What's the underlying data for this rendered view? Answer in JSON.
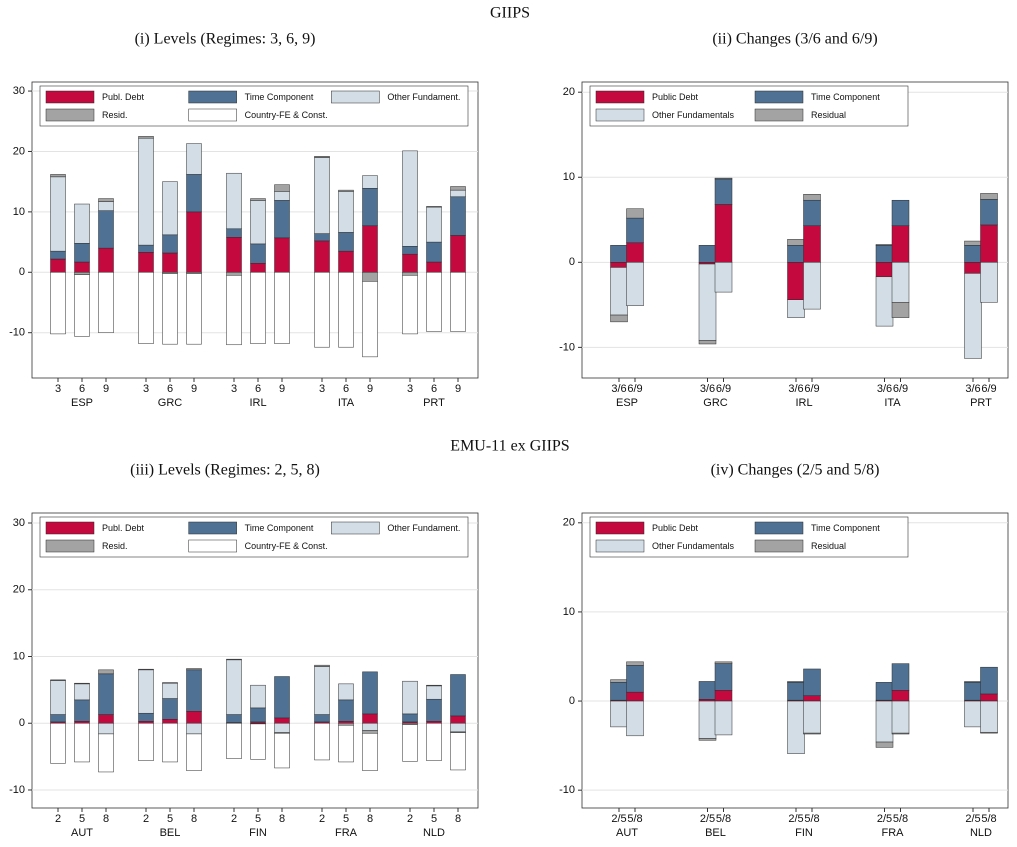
{
  "sections": [
    "GIIPS",
    "EMU-11 ex GIIPS"
  ],
  "chart_data": [
    {
      "type": "stacked_bar",
      "title": "(i) Levels (Regimes: 3, 6, 9)",
      "groups": [
        "ESP",
        "GRC",
        "IRL",
        "ITA",
        "PRT"
      ],
      "categories": [
        "3",
        "6",
        "9",
        "3",
        "6",
        "9",
        "3",
        "6",
        "9",
        "3",
        "6",
        "9",
        "3",
        "6",
        "9"
      ],
      "ylim": [
        -17.5,
        31.5
      ],
      "yticks": [
        -10,
        0,
        10,
        20,
        30
      ],
      "grid": true,
      "legend": "top",
      "legend_columns": 3,
      "series": [
        {
          "name": "Publ. Debt",
          "color": "#c4093f",
          "values": [
            2.2,
            1.7,
            4.0,
            3.3,
            3.2,
            10.0,
            5.8,
            1.5,
            5.7,
            5.2,
            3.5,
            7.7,
            3.0,
            1.7,
            6.1
          ]
        },
        {
          "name": "Time Component",
          "color": "#4f7294",
          "values": [
            1.3,
            3.1,
            6.2,
            1.2,
            3.0,
            6.2,
            1.4,
            3.2,
            6.2,
            1.2,
            3.1,
            6.2,
            1.3,
            3.3,
            6.4
          ]
        },
        {
          "name": "Other Fundament.",
          "color": "#d3dde6",
          "values": [
            12.3,
            6.5,
            1.5,
            17.7,
            8.8,
            5.1,
            9.2,
            7.2,
            1.5,
            12.6,
            6.8,
            2.1,
            15.8,
            5.8,
            1.1
          ]
        },
        {
          "name": "Resid.",
          "color": "#a3a3a3",
          "values": [
            0.4,
            -0.4,
            0.5,
            0.3,
            -0.2,
            -0.2,
            -0.5,
            0.3,
            1.1,
            0.2,
            0.2,
            -1.5,
            -0.5,
            0.1,
            0.6
          ]
        },
        {
          "name": "Country-FE & Const.",
          "color": "#ffffff",
          "values": [
            -10.2,
            -10.2,
            -10.0,
            -11.8,
            -11.7,
            -11.7,
            -11.5,
            -11.8,
            -11.8,
            -12.4,
            -12.4,
            -12.5,
            -9.7,
            -9.8,
            -9.8
          ]
        }
      ]
    },
    {
      "type": "stacked_bar",
      "title": "(ii) Changes (3/6 and 6/9)",
      "groups": [
        "ESP",
        "GRC",
        "IRL",
        "ITA",
        "PRT"
      ],
      "categories": [
        "3/6",
        "6/9",
        "3/6",
        "6/9",
        "3/6",
        "6/9",
        "3/6",
        "6/9",
        "3/6",
        "6/9"
      ],
      "ylim": [
        -13.6,
        21.2
      ],
      "yticks": [
        -10,
        0,
        10,
        20
      ],
      "grid": true,
      "legend": "top",
      "legend_columns": 2,
      "series": [
        {
          "name": "Public Debt",
          "color": "#c4093f",
          "values": [
            -0.6,
            2.3,
            -0.2,
            6.8,
            -4.4,
            4.3,
            -1.7,
            4.3,
            -1.3,
            4.4
          ]
        },
        {
          "name": "Time Component",
          "color": "#4f7294",
          "values": [
            2.0,
            2.9,
            2.0,
            3.0,
            2.0,
            3.0,
            2.0,
            3.0,
            2.0,
            3.0
          ]
        },
        {
          "name": "Other Fundamentals",
          "color": "#d3dde6",
          "values": [
            -5.6,
            -5.1,
            -9.0,
            -3.5,
            -2.1,
            -5.5,
            -5.8,
            -4.7,
            -10.0,
            -4.7
          ]
        },
        {
          "name": "Residual",
          "color": "#a3a3a3",
          "values": [
            -0.8,
            1.1,
            -0.4,
            0.1,
            0.7,
            0.7,
            0.1,
            -1.8,
            0.5,
            0.7
          ]
        }
      ]
    },
    {
      "type": "stacked_bar",
      "title": "(iii) Levels (Regimes: 2, 5, 8)",
      "groups": [
        "AUT",
        "BEL",
        "FIN",
        "FRA",
        "NLD"
      ],
      "categories": [
        "2",
        "5",
        "8",
        "2",
        "5",
        "8",
        "2",
        "5",
        "8",
        "2",
        "5",
        "8",
        "2",
        "5",
        "8"
      ],
      "ylim": [
        -12.7,
        31.5
      ],
      "yticks": [
        -10,
        0,
        10,
        20,
        30
      ],
      "grid": true,
      "legend": "top",
      "legend_columns": 3,
      "series": [
        {
          "name": "Publ. Debt",
          "color": "#c4093f",
          "values": [
            0.2,
            0.3,
            1.3,
            0.3,
            0.6,
            1.8,
            0.1,
            0.2,
            0.8,
            0.2,
            0.3,
            1.4,
            0.2,
            0.3,
            1.1
          ]
        },
        {
          "name": "Time Component",
          "color": "#4f7294",
          "values": [
            1.1,
            3.2,
            6.1,
            1.2,
            3.1,
            6.2,
            1.2,
            2.1,
            6.2,
            1.1,
            3.2,
            6.3,
            1.2,
            3.3,
            6.2
          ]
        },
        {
          "name": "Other Fundament.",
          "color": "#d3dde6",
          "values": [
            5.1,
            2.4,
            -1.6,
            6.5,
            2.3,
            -1.6,
            8.2,
            3.4,
            -1.4,
            7.2,
            2.4,
            -1.1,
            4.9,
            2.0,
            -1.3
          ]
        },
        {
          "name": "Resid.",
          "color": "#a3a3a3",
          "values": [
            0.1,
            0.1,
            0.6,
            0.1,
            0.1,
            0.2,
            0.1,
            -0.1,
            -0.1,
            0.2,
            -0.3,
            -0.4,
            -0.2,
            0.1,
            -0.1
          ]
        },
        {
          "name": "Country-FE & Const.",
          "color": "#ffffff",
          "values": [
            -6.0,
            -5.8,
            -5.7,
            -5.6,
            -5.8,
            -5.5,
            -5.3,
            -5.3,
            -5.2,
            -5.5,
            -5.5,
            -5.6,
            -5.5,
            -5.6,
            -5.6
          ]
        }
      ]
    },
    {
      "type": "stacked_bar",
      "title": "(iv) Changes (2/5 and 5/8)",
      "groups": [
        "AUT",
        "BEL",
        "FIN",
        "FRA",
        "NLD"
      ],
      "categories": [
        "2/5",
        "5/8",
        "2/5",
        "5/8",
        "2/5",
        "5/8",
        "2/5",
        "5/8",
        "2/5",
        "5/8"
      ],
      "ylim": [
        -12.0,
        21.1
      ],
      "yticks": [
        -10,
        0,
        10,
        20
      ],
      "grid": true,
      "legend": "top",
      "legend_columns": 2,
      "series": [
        {
          "name": "Public Debt",
          "color": "#c4093f",
          "values": [
            0.1,
            1.0,
            0.2,
            1.2,
            0.1,
            0.6,
            0.1,
            1.2,
            0.1,
            0.8
          ]
        },
        {
          "name": "Time Component",
          "color": "#4f7294",
          "values": [
            2.0,
            3.0,
            2.0,
            3.0,
            2.0,
            3.0,
            2.0,
            3.0,
            2.0,
            3.0
          ]
        },
        {
          "name": "Other Fundamentals",
          "color": "#d3dde6",
          "values": [
            -2.9,
            -3.9,
            -4.2,
            -3.8,
            -5.9,
            -3.6,
            -4.6,
            -3.6,
            -2.9,
            -3.5
          ]
        },
        {
          "name": "Residual",
          "color": "#a3a3a3",
          "values": [
            0.3,
            0.4,
            -0.2,
            0.2,
            0.1,
            -0.1,
            -0.6,
            -0.1,
            0.1,
            -0.1
          ]
        }
      ]
    }
  ]
}
